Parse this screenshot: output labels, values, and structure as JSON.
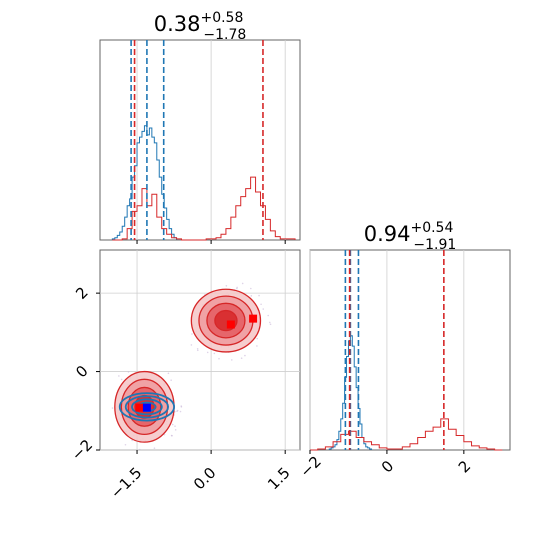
{
  "chart_data": [
    {
      "type": "histogram",
      "panel": "top-left",
      "title_main": "0.38",
      "title_sup": "+0.58",
      "title_sub": "−1.78",
      "xlim": [
        -2.25,
        1.8
      ],
      "grid": true,
      "series": [
        {
          "color": "#1f77b4",
          "bin_edges": [
            -2.0,
            -1.95,
            -1.9,
            -1.85,
            -1.8,
            -1.75,
            -1.7,
            -1.65,
            -1.6,
            -1.55,
            -1.5,
            -1.45,
            -1.4,
            -1.35,
            -1.3,
            -1.25,
            -1.2,
            -1.15,
            -1.1,
            -1.05,
            -1.0,
            -0.95,
            -0.9,
            -0.85,
            -0.8,
            -0.75,
            -0.7
          ],
          "counts": [
            1,
            2,
            4,
            7,
            12,
            20,
            30,
            36,
            55,
            65,
            85,
            90,
            95,
            100,
            92,
            98,
            90,
            85,
            70,
            55,
            40,
            28,
            18,
            10,
            5,
            2
          ],
          "quantiles": [
            -1.62,
            -1.3,
            -0.96
          ]
        },
        {
          "color": "#d62728",
          "bin_edges": [
            -2.0,
            -1.9,
            -1.8,
            -1.7,
            -1.6,
            -1.5,
            -1.4,
            -1.3,
            -1.2,
            -1.1,
            -1.0,
            -0.9,
            -0.8,
            -0.7,
            -0.6,
            -0.5,
            -0.4,
            -0.3,
            -0.2,
            -0.1,
            0.0,
            0.1,
            0.2,
            0.3,
            0.4,
            0.5,
            0.6,
            0.7,
            0.8,
            0.9,
            1.0,
            1.1,
            1.2,
            1.3,
            1.4,
            1.5,
            1.6,
            1.7
          ],
          "counts": [
            0,
            0,
            1,
            10,
            25,
            30,
            45,
            30,
            40,
            20,
            10,
            5,
            2,
            1,
            0,
            0,
            0,
            0,
            0,
            1,
            1,
            2,
            5,
            10,
            20,
            30,
            38,
            45,
            55,
            42,
            30,
            18,
            8,
            3,
            1,
            1,
            1
          ],
          "quantiles": [
            -1.55,
            1.05
          ]
        }
      ]
    },
    {
      "type": "histogram",
      "panel": "bottom-right",
      "title_main": "0.94",
      "title_sup": "+0.54",
      "title_sub": "−1.91",
      "xlim": [
        -2.0,
        3.2
      ],
      "xticks": [
        -2,
        0,
        2
      ],
      "xtick_labels": [
        "−2",
        "0",
        "2"
      ],
      "grid": true,
      "series": [
        {
          "color": "#1f77b4",
          "bin_edges": [
            -1.5,
            -1.45,
            -1.4,
            -1.35,
            -1.3,
            -1.25,
            -1.2,
            -1.15,
            -1.1,
            -1.05,
            -1.0,
            -0.95,
            -0.9,
            -0.85,
            -0.8,
            -0.75,
            -0.7,
            -0.65,
            -0.6,
            -0.55,
            -0.5,
            -0.45,
            -0.4
          ],
          "counts": [
            1,
            2,
            3,
            5,
            10,
            18,
            30,
            45,
            70,
            90,
            105,
            110,
            100,
            80,
            60,
            40,
            25,
            12,
            6,
            3,
            2,
            1
          ],
          "quantiles": [
            -1.08,
            -0.95,
            -0.74
          ]
        },
        {
          "color": "#d62728",
          "bin_edges": [
            -2.0,
            -1.8,
            -1.6,
            -1.4,
            -1.2,
            -1.0,
            -0.8,
            -0.6,
            -0.4,
            -0.2,
            0.0,
            0.2,
            0.4,
            0.6,
            0.8,
            1.0,
            1.2,
            1.4,
            1.6,
            1.8,
            2.0,
            2.2,
            2.4,
            2.6,
            2.8,
            3.0
          ],
          "counts": [
            0,
            1,
            3,
            8,
            15,
            18,
            12,
            8,
            5,
            2,
            1,
            1,
            3,
            6,
            12,
            18,
            22,
            30,
            20,
            14,
            8,
            4,
            2,
            1,
            0
          ],
          "quantiles": [
            -0.97,
            1.48
          ]
        }
      ]
    },
    {
      "type": "contour",
      "panel": "bottom-left",
      "xlim": [
        -2.25,
        1.8
      ],
      "ylim": [
        -2.0,
        3.1
      ],
      "xticks": [
        -1.5,
        0.0,
        1.5
      ],
      "xtick_labels": [
        "−1.5",
        "0.0",
        "1.5"
      ],
      "yticks": [
        -2,
        0,
        2
      ],
      "ytick_labels": [
        "−2",
        "0",
        "2"
      ],
      "grid": true,
      "blobs": [
        {
          "color": "#d62728",
          "center": [
            -1.35,
            -0.9
          ],
          "spread": [
            0.6,
            0.9
          ]
        },
        {
          "color": "#d62728",
          "center": [
            0.3,
            1.3
          ],
          "spread": [
            0.7,
            0.8
          ]
        },
        {
          "color": "#1f77b4",
          "center": [
            -1.3,
            -0.9
          ],
          "spread": [
            0.55,
            0.35
          ]
        }
      ],
      "markers": [
        {
          "color": "#ff0000",
          "x": 0.4,
          "y": 1.2
        },
        {
          "color": "#ff0000",
          "x": 0.85,
          "y": 1.35
        },
        {
          "color": "#ff0000",
          "x": -1.45,
          "y": -0.92
        },
        {
          "color": "#0000ff",
          "x": -1.3,
          "y": -0.92
        }
      ]
    }
  ]
}
